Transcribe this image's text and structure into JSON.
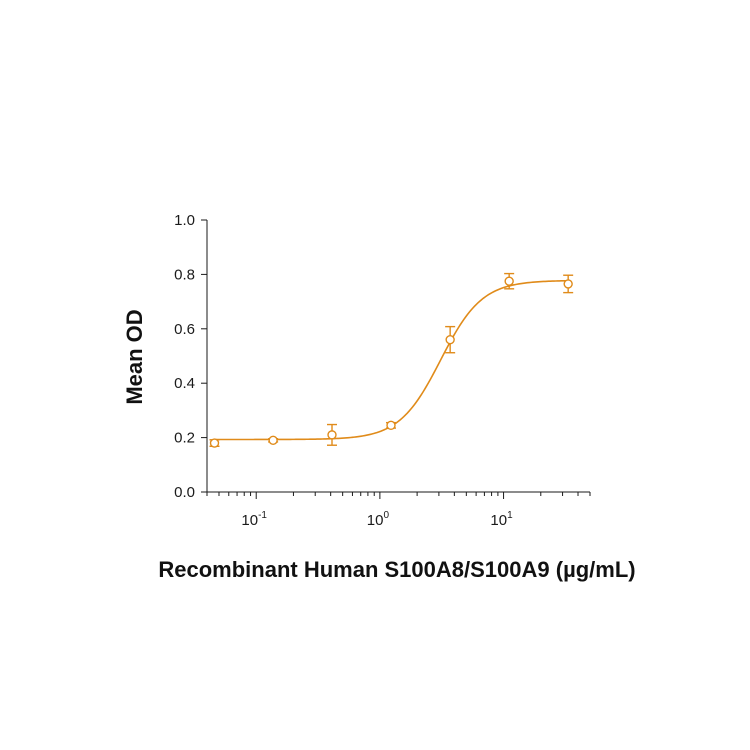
{
  "chart_data": {
    "type": "scatter",
    "xlabel": "Recombinant Human S100A8/S100A9 (µg/mL)",
    "ylabel": "Mean OD",
    "x_scale": "log",
    "xlim": [
      0.04,
      50
    ],
    "ylim": [
      0,
      1.0
    ],
    "y_ticks": [
      "0.0",
      "0.2",
      "0.4",
      "0.6",
      "0.8",
      "1.0"
    ],
    "x_ticks": [
      {
        "base": "10",
        "exp": "-1",
        "value": 0.1
      },
      {
        "base": "10",
        "exp": "0",
        "value": 1
      },
      {
        "base": "10",
        "exp": "1",
        "value": 10
      }
    ],
    "grid": false,
    "color": "#E08B1A",
    "series": [
      {
        "x": [
          0.046,
          0.137,
          0.41,
          1.23,
          3.7,
          11.1,
          33.3
        ],
        "y": [
          0.18,
          0.19,
          0.21,
          0.245,
          0.56,
          0.775,
          0.765
        ],
        "err": [
          0.012,
          0.006,
          0.038,
          0.01,
          0.048,
          0.028,
          0.032
        ]
      }
    ],
    "fit": {
      "model": "4PL",
      "bottom": 0.193,
      "top": 0.778,
      "ec50": 3.1,
      "hill": 2.6
    }
  }
}
